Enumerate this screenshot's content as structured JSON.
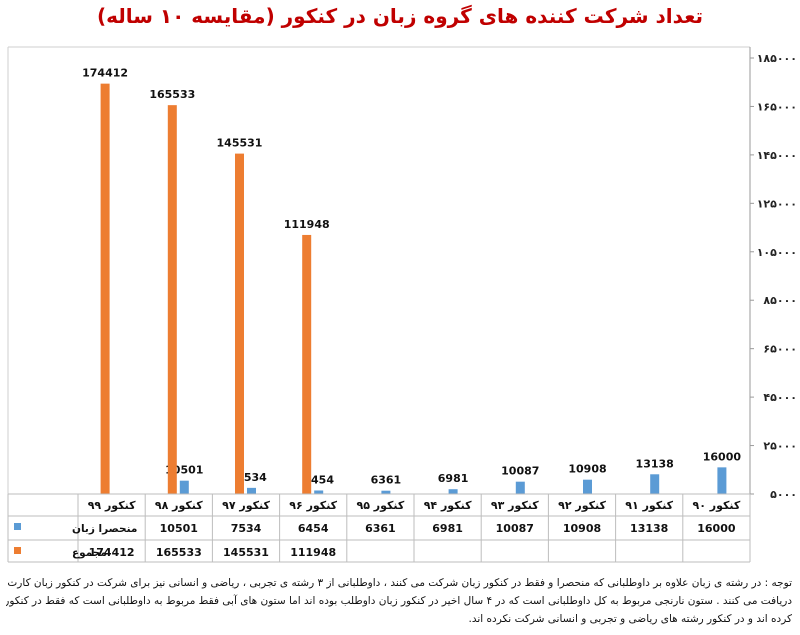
{
  "title": "تعداد شرکت کننده های گروه زبان در کنکور (مقایسه ۱۰ ساله)",
  "colors": {
    "series_language": "#5b9bd5",
    "series_total": "#ed7d31",
    "title": "#c00000"
  },
  "chart_data": {
    "type": "bar",
    "title": "تعداد شرکت کننده های گروه زبان در کنکور (مقایسه ۱۰ ساله)",
    "categories": [
      "کنکور ۹۹",
      "کنکور ۹۸",
      "کنکور ۹۷",
      "کنکور ۹۶",
      "کنکور ۹۵",
      "کنکور ۹۴",
      "کنکور ۹۳",
      "کنکور ۹۲",
      "کنکور ۹۱",
      "کنکور ۹۰"
    ],
    "series": [
      {
        "name": "منحصرا زبان",
        "values": [
          null,
          10501,
          7534,
          6454,
          6361,
          6981,
          10087,
          10908,
          13138,
          16000
        ]
      },
      {
        "name": "مجموع",
        "values": [
          174412,
          165533,
          145531,
          111948,
          null,
          null,
          null,
          null,
          null,
          null
        ]
      }
    ],
    "y_ticks": [
      "۵۰۰۰",
      "۲۵۰۰۰",
      "۴۵۰۰۰",
      "۶۵۰۰۰",
      "۸۵۰۰۰",
      "۱۰۵۰۰۰",
      "۱۲۵۰۰۰",
      "۱۴۵۰۰۰",
      "۱۶۵۰۰۰",
      "۱۸۵۰۰۰"
    ],
    "ylim": [
      5000,
      185000
    ],
    "y_axis_side": "right",
    "legend": "data-table",
    "grid": false
  },
  "notes": [
    "توجه : در رشته ی زبان علاوه بر داوطلبانی که منحصرا و فقط در کنکور زبان شرکت می کنند ، داوطلبانی از ۳ رشته ی تجربی ، ریاضی و انسانی نیز برای شرکت در کنکور زبان کارت ورود به جلسه",
    "دریافت می کنند . ستون نارنجی مربوط به کل داوطلبانی است که در ۴ سال اخیر در کنکور زبان داوطلب بوده اند اما ستون های آبی فقط مربوط به داوطلبانی است که فقط در کنکور زبان شرکت",
    "کرده اند و در کنکور رشته های ریاضی و تجربی و انسانی شرکت نکرده اند."
  ]
}
